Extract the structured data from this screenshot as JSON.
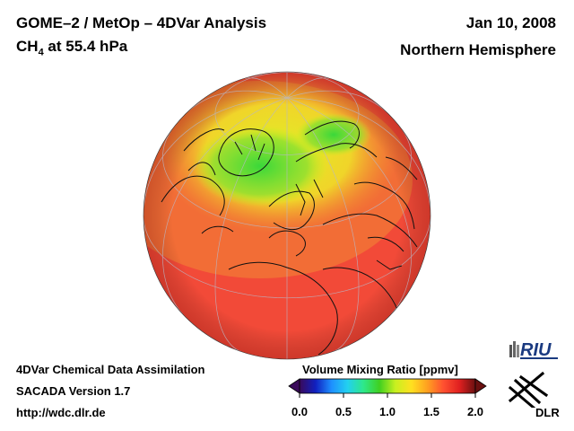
{
  "header": {
    "title": "GOME–2 / MetOp – 4DVar Analysis",
    "species": "CH",
    "species_sub": "4",
    "level": " at 55.4 hPa",
    "date": "Jan 10, 2008",
    "region": "Northern Hemisphere"
  },
  "footer": {
    "line1": "4DVar Chemical Data Assimilation",
    "line2": "SACADA Version 1.7",
    "line3": "http://wdc.dlr.de"
  },
  "colorbar": {
    "title": "Volume Mixing Ratio [ppmv]",
    "ticks": [
      "0.0",
      "0.5",
      "1.0",
      "1.5",
      "2.0"
    ],
    "min": 0.0,
    "max": 2.0,
    "colors": [
      "#3a0a5a",
      "#1020c0",
      "#1e90ff",
      "#22d0f0",
      "#2ee88a",
      "#40d020",
      "#c8f020",
      "#ffe020",
      "#ffa020",
      "#ff5030",
      "#e02020",
      "#6a1010"
    ]
  },
  "logos": {
    "riu": "RIU",
    "dlr": "DLR"
  },
  "map": {
    "projection": "orthographic",
    "background_color": "#f24a38",
    "high_latitude_color": "#e8f028",
    "polar_minimum_color": "#48d838"
  }
}
